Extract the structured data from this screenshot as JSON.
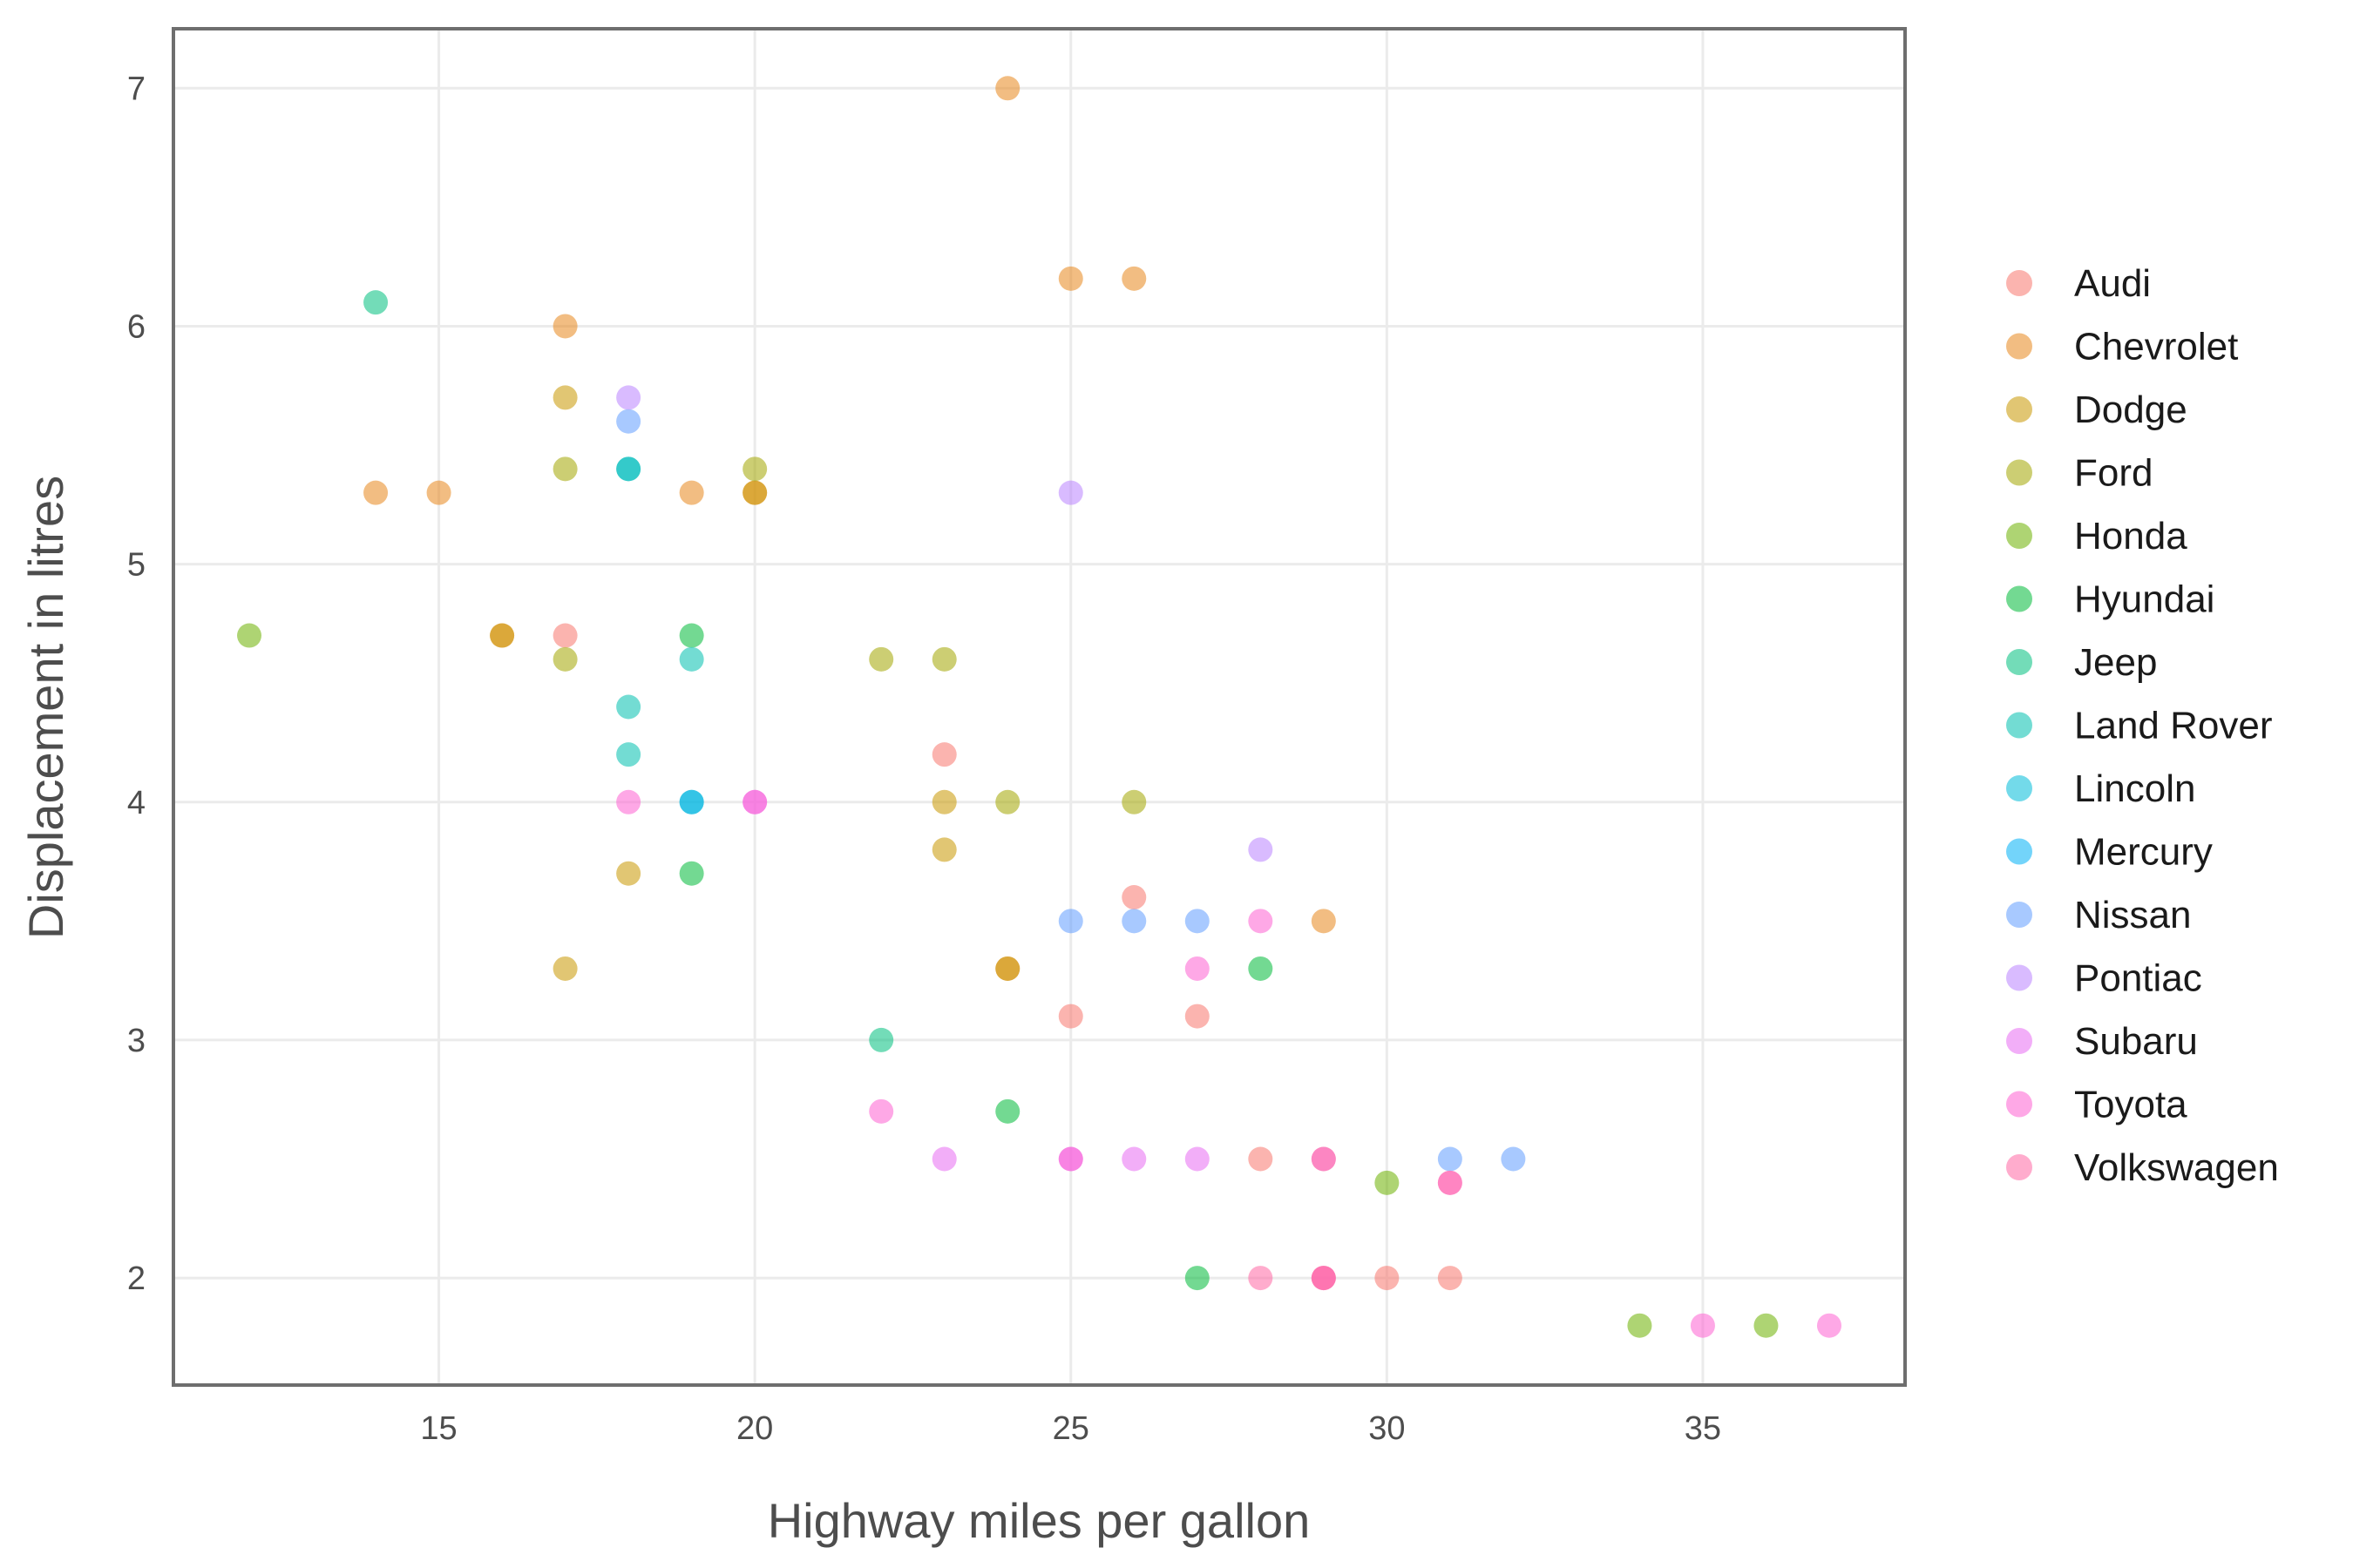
{
  "chart_data": {
    "type": "scatter",
    "xlabel": "Highway miles per gallon",
    "ylabel": "Displacement in litres",
    "xlim": [
      10.8,
      38.2
    ],
    "ylim": [
      1.55,
      7.25
    ],
    "xticks": [
      15,
      20,
      25,
      30,
      35
    ],
    "yticks": [
      2,
      3,
      4,
      5,
      6,
      7
    ],
    "grid": true,
    "legend_position": "right",
    "point_opacity": 0.55,
    "series": [
      {
        "name": "Audi",
        "color": "#F8766D",
        "points": [
          [
            17,
            4.7
          ],
          [
            23,
            4.2
          ],
          [
            26,
            3.6
          ],
          [
            25,
            3.1
          ],
          [
            27,
            3.1
          ],
          [
            28,
            2.5
          ],
          [
            29,
            2.0
          ],
          [
            30,
            2.0
          ],
          [
            31,
            2.0
          ],
          [
            29,
            2.5
          ]
        ]
      },
      {
        "name": "Chevrolet",
        "color": "#E7861B",
        "points": [
          [
            24,
            7.0
          ],
          [
            25,
            6.2
          ],
          [
            26,
            6.2
          ],
          [
            17,
            6.0
          ],
          [
            14,
            5.3
          ],
          [
            15,
            5.3
          ],
          [
            19,
            5.3
          ],
          [
            20,
            5.3
          ],
          [
            29,
            3.5
          ],
          [
            24,
            3.3
          ],
          [
            16,
            4.7
          ]
        ]
      },
      {
        "name": "Dodge",
        "color": "#C99800",
        "points": [
          [
            17,
            5.7
          ],
          [
            16,
            4.7
          ],
          [
            23,
            4.0
          ],
          [
            23,
            3.8
          ],
          [
            18,
            3.7
          ],
          [
            17,
            3.3
          ],
          [
            24,
            3.3
          ],
          [
            20,
            5.3
          ]
        ]
      },
      {
        "name": "Ford",
        "color": "#A3A500",
        "points": [
          [
            17,
            5.4
          ],
          [
            20,
            5.4
          ],
          [
            17,
            4.6
          ],
          [
            22,
            4.6
          ],
          [
            23,
            4.6
          ],
          [
            24,
            4.0
          ],
          [
            26,
            4.0
          ]
        ]
      },
      {
        "name": "Honda",
        "color": "#6BB100",
        "points": [
          [
            34,
            1.8
          ],
          [
            36,
            1.8
          ],
          [
            12,
            4.7
          ],
          [
            30,
            2.4
          ]
        ]
      },
      {
        "name": "Hyundai",
        "color": "#00BA38",
        "points": [
          [
            19,
            4.7
          ],
          [
            19,
            3.7
          ],
          [
            28,
            3.3
          ],
          [
            24,
            2.7
          ],
          [
            27,
            2.0
          ]
        ]
      },
      {
        "name": "Jeep",
        "color": "#00BF7D",
        "points": [
          [
            14,
            6.1
          ],
          [
            22,
            3.0
          ],
          [
            18,
            5.4
          ]
        ]
      },
      {
        "name": "Land Rover",
        "color": "#00C0AF",
        "points": [
          [
            18,
            4.4
          ],
          [
            18,
            4.2
          ],
          [
            19,
            4.6
          ],
          [
            19,
            4.0
          ]
        ]
      },
      {
        "name": "Lincoln",
        "color": "#00BCD8",
        "points": [
          [
            18,
            5.4
          ]
        ]
      },
      {
        "name": "Mercury",
        "color": "#00B0F6",
        "points": [
          [
            19,
            4.0
          ]
        ]
      },
      {
        "name": "Nissan",
        "color": "#619CFF",
        "points": [
          [
            18,
            5.6
          ],
          [
            25,
            3.5
          ],
          [
            26,
            3.5
          ],
          [
            27,
            3.5
          ],
          [
            31,
            2.5
          ],
          [
            32,
            2.5
          ]
        ]
      },
      {
        "name": "Pontiac",
        "color": "#B983FF",
        "points": [
          [
            25,
            5.3
          ],
          [
            28,
            3.8
          ],
          [
            18,
            5.7
          ]
        ]
      },
      {
        "name": "Subaru",
        "color": "#E76BF3",
        "points": [
          [
            23,
            2.5
          ],
          [
            25,
            2.5
          ],
          [
            26,
            2.5
          ],
          [
            27,
            2.5
          ],
          [
            20,
            4.0
          ]
        ]
      },
      {
        "name": "Toyota",
        "color": "#FD61D1",
        "points": [
          [
            18,
            4.0
          ],
          [
            20,
            4.0
          ],
          [
            22,
            2.7
          ],
          [
            27,
            3.3
          ],
          [
            28,
            3.5
          ],
          [
            31,
            2.4
          ],
          [
            35,
            1.8
          ],
          [
            37,
            1.8
          ],
          [
            29,
            2.0
          ],
          [
            29,
            2.5
          ],
          [
            25,
            2.5
          ]
        ]
      },
      {
        "name": "Volkswagen",
        "color": "#FF67A4",
        "points": [
          [
            28,
            2.0
          ],
          [
            29,
            2.0
          ],
          [
            31,
            2.4
          ]
        ]
      }
    ]
  }
}
